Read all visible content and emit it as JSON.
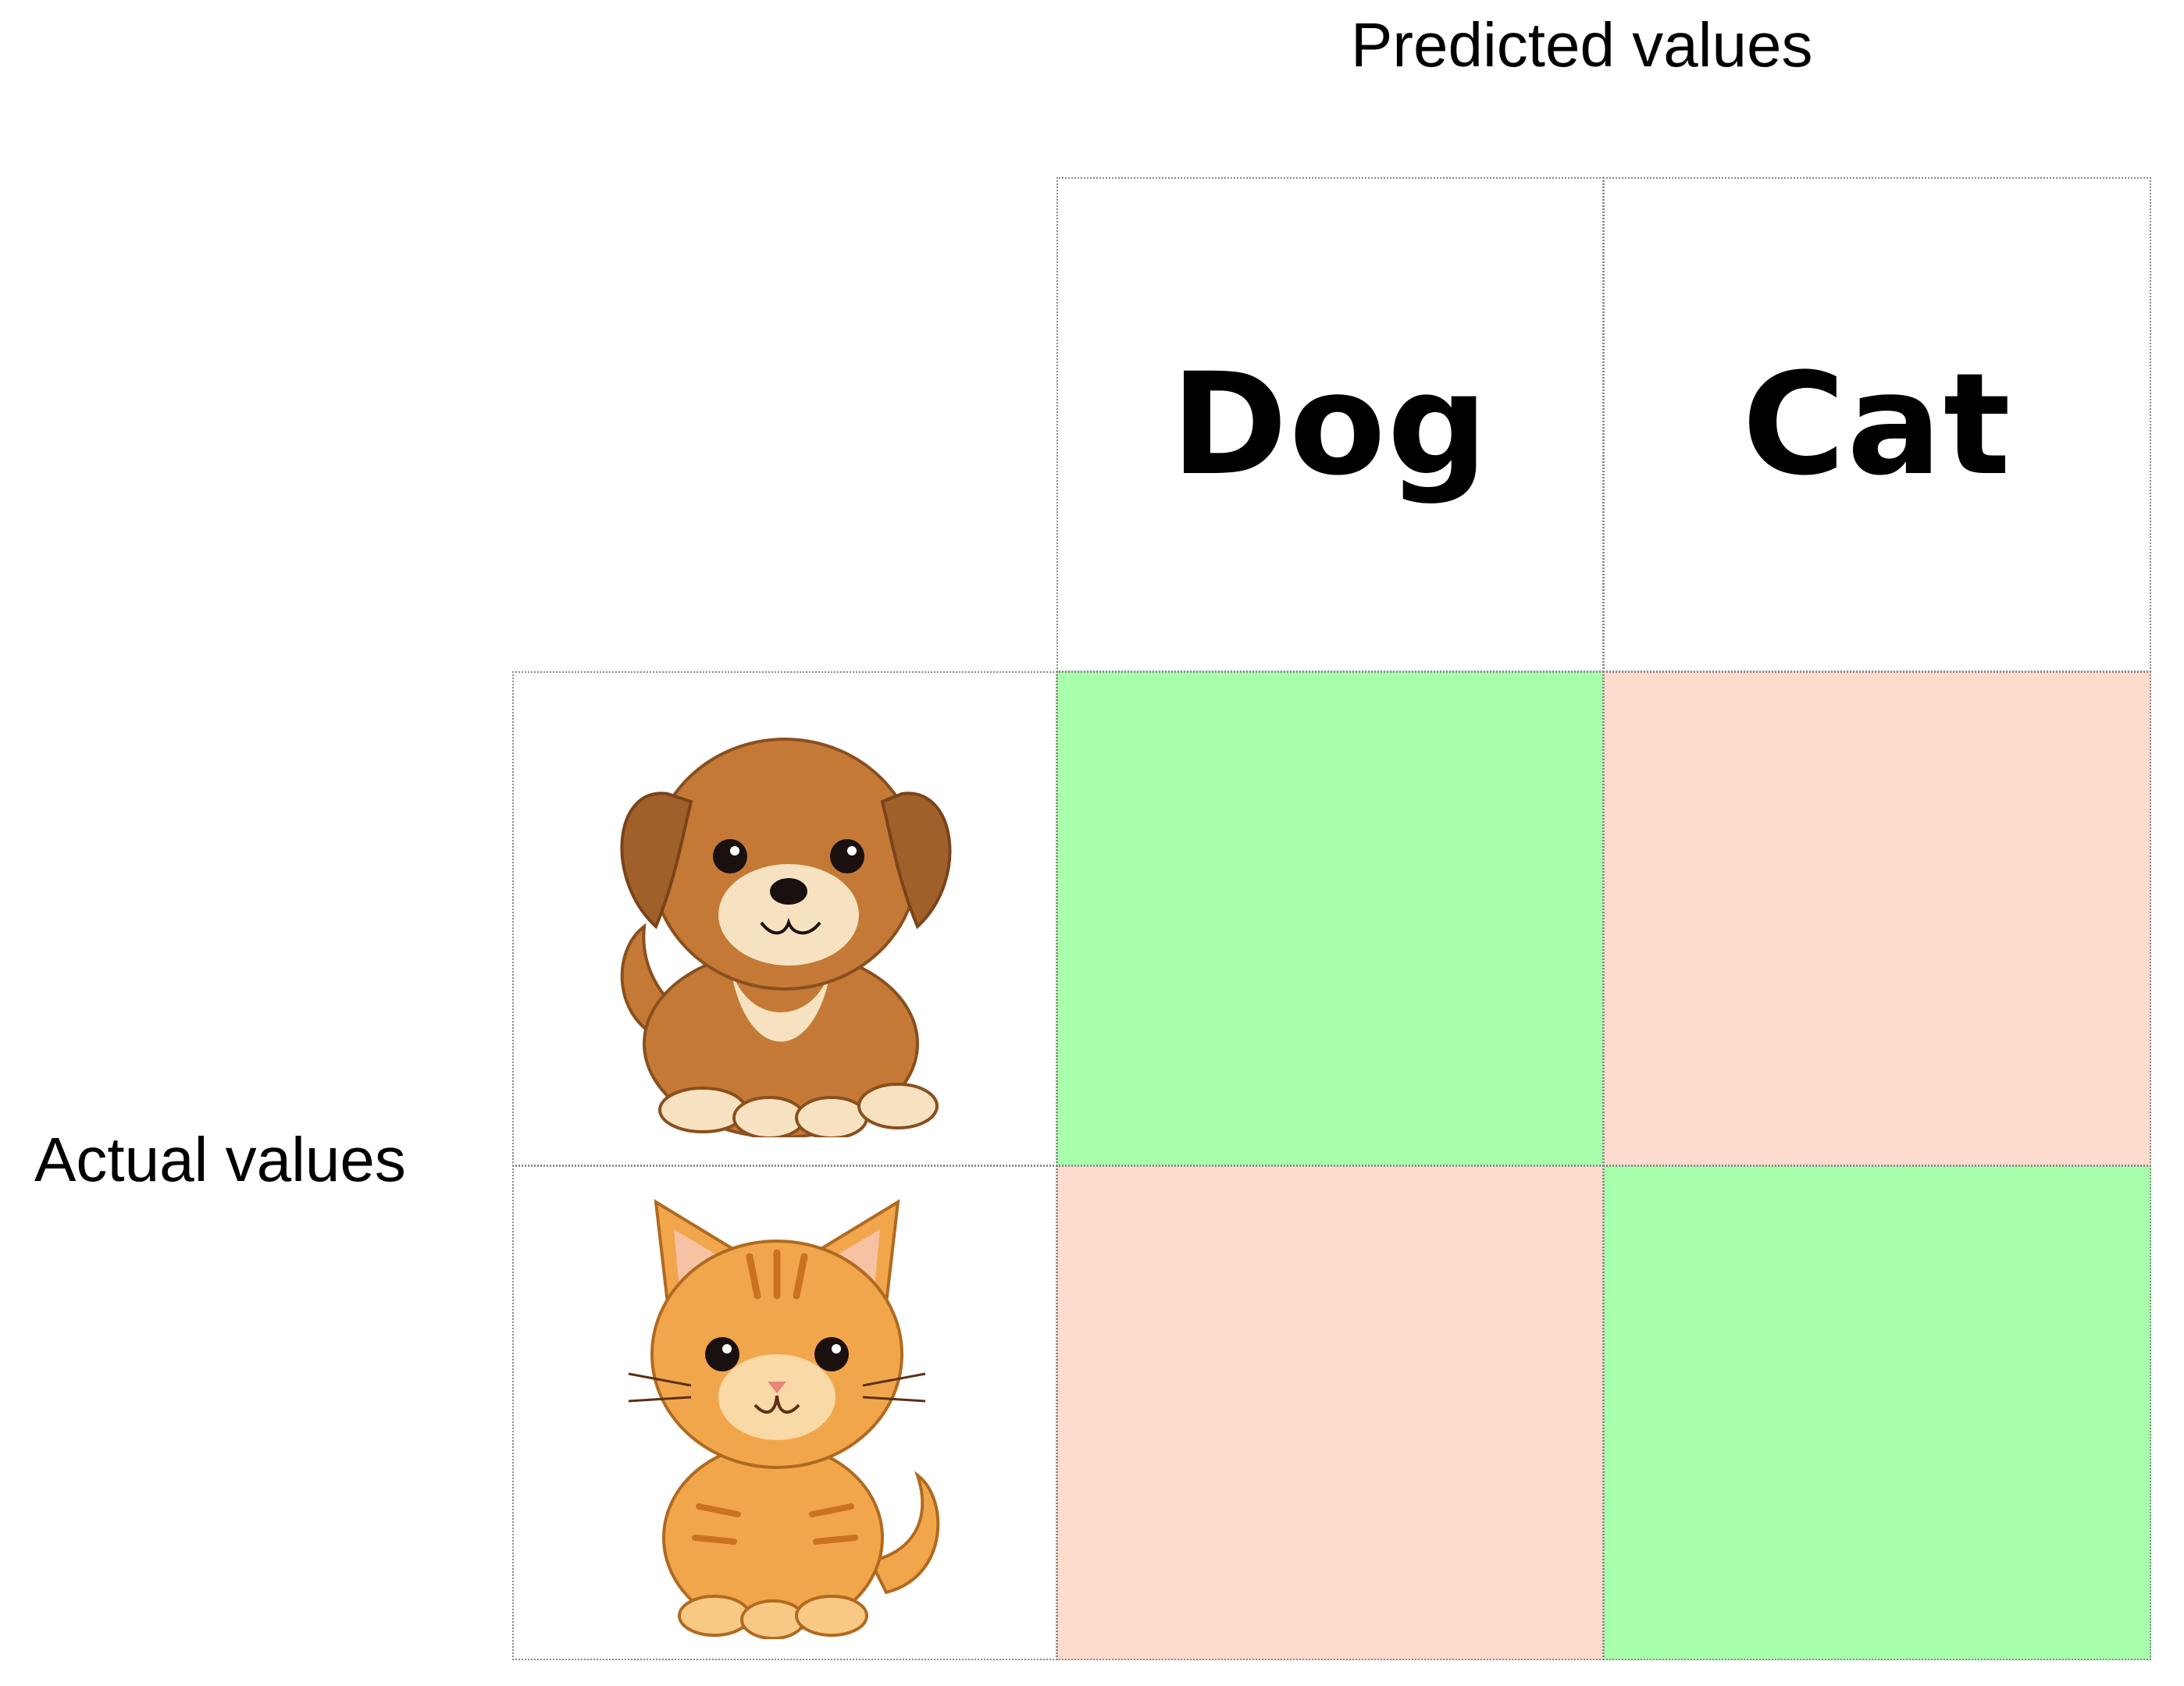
{
  "axis": {
    "predicted": "Predicted values",
    "actual": "Actual values"
  },
  "columns": [
    "Dog",
    "Cat"
  ],
  "rows": [
    {
      "icon": "puppy-illustration"
    },
    {
      "icon": "kitten-illustration"
    }
  ],
  "matrix": [
    [
      "correct",
      "incorrect"
    ],
    [
      "incorrect",
      "correct"
    ]
  ],
  "colors": {
    "correct": "#a8ffac",
    "incorrect": "#fddbcd",
    "grid": "#8a8a8a",
    "dog_fur": "#c47a36",
    "cat_fur": "#f2a64c"
  }
}
